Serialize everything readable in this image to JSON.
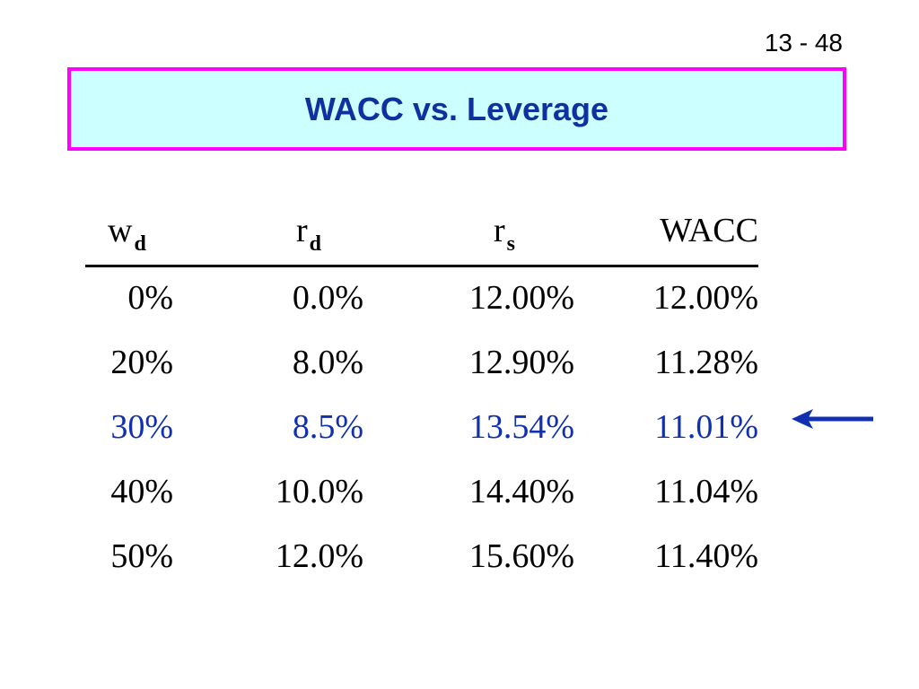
{
  "slide_number": "13 - 48",
  "title": "WACC vs. Leverage",
  "table": {
    "headers": {
      "wd": {
        "base": "w",
        "sub": "d"
      },
      "rd": {
        "base": "r",
        "sub": "d"
      },
      "rs": {
        "base": "r",
        "sub": "s"
      },
      "wacc": "WACC"
    },
    "rows": [
      {
        "wd": "0%",
        "rd": "0.0%",
        "rs": "12.00%",
        "wacc": "12.00%"
      },
      {
        "wd": "20%",
        "rd": "8.0%",
        "rs": "12.90%",
        "wacc": "11.28%"
      },
      {
        "wd": "30%",
        "rd": "8.5%",
        "rs": "13.54%",
        "wacc": "11.01%"
      },
      {
        "wd": "40%",
        "rd": "10.0%",
        "rs": "14.40%",
        "wacc": "11.04%"
      },
      {
        "wd": "50%",
        "rd": "12.0%",
        "rs": "15.60%",
        "wacc": "11.40%"
      }
    ],
    "highlighted_row_index": 2
  },
  "colors": {
    "title_text": "#1030a0",
    "title_bg": "#ccffff",
    "title_border": "#ff00ff",
    "highlight": "#1030b0"
  },
  "arrow_icon": "left-arrow-icon"
}
